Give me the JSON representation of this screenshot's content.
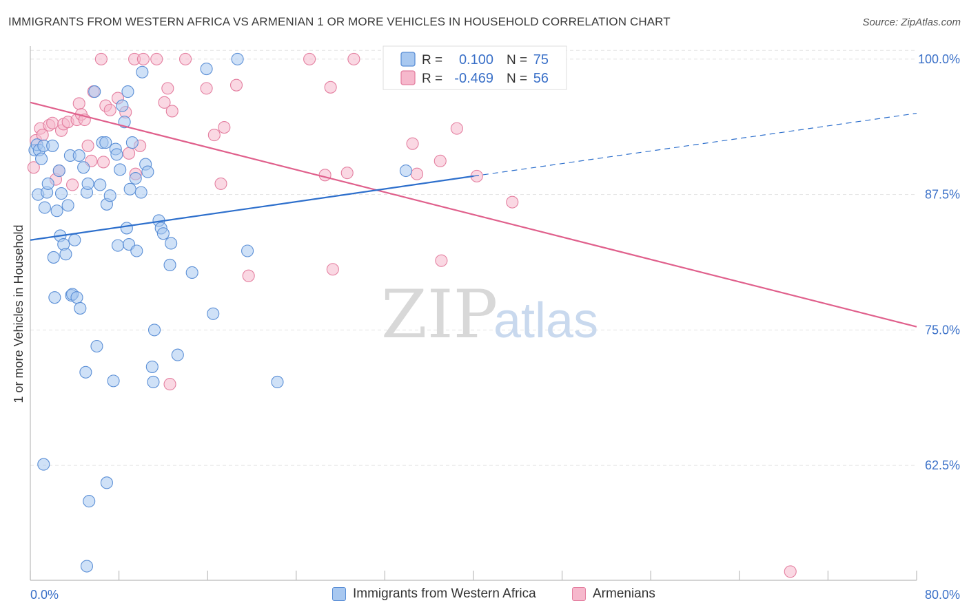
{
  "header": {
    "title": "IMMIGRANTS FROM WESTERN AFRICA VS ARMENIAN 1 OR MORE VEHICLES IN HOUSEHOLD CORRELATION CHART",
    "source": "Source: ZipAtlas.com"
  },
  "watermark": {
    "zip": "ZIP",
    "atlas": "atlas"
  },
  "stats": {
    "r_label": "R =",
    "n_label": "N =",
    "series1_r": "0.100",
    "series1_n": "75",
    "series2_r": "-0.469",
    "series2_n": "56"
  },
  "colors": {
    "series1_fill": "#a8c8f0",
    "series1_stroke": "#5b8fd6",
    "series1_line": "#2d6fcc",
    "series2_fill": "#f6b8cc",
    "series2_stroke": "#e47fa0",
    "series2_line": "#e0608c",
    "value_text": "#3a70c8",
    "grid": "#e2e2e2"
  },
  "chart_data": {
    "type": "scatter",
    "title": "IMMIGRANTS FROM WESTERN AFRICA VS ARMENIAN 1 OR MORE VEHICLES IN HOUSEHOLD CORRELATION CHART",
    "xlabel": "",
    "ylabel": "1 or more Vehicles in Household",
    "xlim": [
      0,
      80
    ],
    "ylim": [
      51.9,
      101.2
    ],
    "x_tick_labels": [
      "0.0%",
      "80.0%"
    ],
    "y_ticks": [
      62.5,
      75.0,
      87.5,
      100.0
    ],
    "y_tick_labels": [
      "62.5%",
      "75.0%",
      "87.5%",
      "100.0%"
    ],
    "grid": true,
    "legend_position": "bottom-center",
    "series": [
      {
        "name": "Immigrants from Western Africa",
        "r": 0.1,
        "n": 75,
        "trend": {
          "x0": 0.0,
          "y0": 83.3,
          "x1": 40.0,
          "y1": 89.2,
          "dashed_to_x": 80.0,
          "dashed_to_y": 95.0
        },
        "points": [
          [
            0.4,
            91.6
          ],
          [
            0.6,
            92.1
          ],
          [
            0.8,
            91.6
          ],
          [
            1.0,
            90.8
          ],
          [
            1.2,
            92.0
          ],
          [
            0.7,
            87.5
          ],
          [
            1.3,
            86.3
          ],
          [
            1.5,
            87.7
          ],
          [
            1.6,
            88.5
          ],
          [
            2.0,
            92.0
          ],
          [
            2.2,
            78.0
          ],
          [
            2.1,
            81.7
          ],
          [
            2.4,
            86.0
          ],
          [
            2.6,
            89.7
          ],
          [
            2.7,
            83.7
          ],
          [
            2.8,
            87.6
          ],
          [
            3.0,
            82.9
          ],
          [
            3.2,
            82.0
          ],
          [
            3.4,
            86.5
          ],
          [
            3.6,
            91.1
          ],
          [
            3.7,
            78.2
          ],
          [
            3.8,
            78.3
          ],
          [
            4.0,
            83.3
          ],
          [
            4.2,
            78.0
          ],
          [
            4.4,
            91.1
          ],
          [
            4.5,
            77.0
          ],
          [
            4.8,
            90.0
          ],
          [
            5.1,
            87.7
          ],
          [
            5.2,
            88.5
          ],
          [
            5.8,
            97.0
          ],
          [
            6.0,
            73.5
          ],
          [
            6.3,
            88.4
          ],
          [
            6.5,
            92.3
          ],
          [
            6.8,
            92.3
          ],
          [
            6.9,
            86.6
          ],
          [
            7.2,
            87.4
          ],
          [
            7.5,
            70.3
          ],
          [
            7.7,
            91.7
          ],
          [
            7.8,
            91.2
          ],
          [
            7.9,
            82.8
          ],
          [
            8.1,
            89.8
          ],
          [
            8.3,
            95.7
          ],
          [
            8.5,
            94.2
          ],
          [
            8.7,
            84.4
          ],
          [
            8.8,
            97.0
          ],
          [
            8.9,
            82.9
          ],
          [
            9.0,
            88.0
          ],
          [
            9.2,
            92.3
          ],
          [
            9.5,
            89.0
          ],
          [
            9.6,
            82.3
          ],
          [
            10.0,
            87.7
          ],
          [
            10.1,
            98.8
          ],
          [
            10.4,
            90.3
          ],
          [
            10.6,
            89.6
          ],
          [
            11.2,
            75.0
          ],
          [
            11.0,
            71.6
          ],
          [
            11.1,
            70.2
          ],
          [
            11.6,
            85.1
          ],
          [
            11.8,
            84.4
          ],
          [
            12.0,
            83.9
          ],
          [
            12.7,
            83.0
          ],
          [
            12.6,
            81.0
          ],
          [
            13.3,
            72.7
          ],
          [
            14.6,
            80.3
          ],
          [
            15.9,
            99.1
          ],
          [
            16.5,
            76.5
          ],
          [
            18.7,
            100.0
          ],
          [
            19.6,
            82.3
          ],
          [
            22.3,
            70.2
          ],
          [
            33.9,
            89.7
          ],
          [
            1.2,
            62.6
          ],
          [
            5.3,
            59.2
          ],
          [
            6.9,
            60.9
          ],
          [
            5.1,
            53.2
          ],
          [
            5.0,
            71.1
          ]
        ]
      },
      {
        "name": "Armenians",
        "r": -0.469,
        "n": 56,
        "trend": {
          "x0": 0.0,
          "y0": 96.0,
          "x1": 80.0,
          "y1": 75.3
        },
        "points": [
          [
            0.3,
            90.0
          ],
          [
            0.5,
            92.5
          ],
          [
            0.9,
            93.6
          ],
          [
            1.1,
            93.0
          ],
          [
            1.7,
            93.9
          ],
          [
            2.0,
            94.1
          ],
          [
            2.3,
            88.9
          ],
          [
            2.6,
            89.7
          ],
          [
            2.8,
            93.4
          ],
          [
            3.0,
            94.0
          ],
          [
            3.4,
            94.2
          ],
          [
            3.8,
            88.4
          ],
          [
            4.2,
            94.4
          ],
          [
            4.4,
            95.9
          ],
          [
            4.6,
            94.9
          ],
          [
            4.9,
            94.4
          ],
          [
            5.2,
            92.0
          ],
          [
            5.5,
            90.6
          ],
          [
            5.7,
            97.0
          ],
          [
            6.4,
            100.0
          ],
          [
            6.6,
            90.5
          ],
          [
            6.8,
            95.7
          ],
          [
            7.2,
            95.3
          ],
          [
            7.9,
            96.4
          ],
          [
            8.6,
            95.1
          ],
          [
            8.9,
            91.3
          ],
          [
            9.4,
            100.0
          ],
          [
            9.5,
            89.4
          ],
          [
            9.9,
            92.0
          ],
          [
            10.2,
            100.0
          ],
          [
            11.4,
            100.0
          ],
          [
            12.1,
            96.0
          ],
          [
            12.4,
            97.3
          ],
          [
            12.8,
            95.2
          ],
          [
            14.0,
            100.0
          ],
          [
            15.9,
            97.3
          ],
          [
            16.6,
            93.0
          ],
          [
            17.2,
            88.5
          ],
          [
            17.5,
            93.7
          ],
          [
            18.6,
            97.6
          ],
          [
            19.7,
            80.0
          ],
          [
            25.2,
            100.0
          ],
          [
            26.6,
            89.3
          ],
          [
            27.1,
            97.4
          ],
          [
            27.3,
            80.6
          ],
          [
            28.6,
            89.5
          ],
          [
            29.2,
            100.0
          ],
          [
            34.5,
            92.2
          ],
          [
            34.9,
            89.4
          ],
          [
            37.1,
            81.4
          ],
          [
            37.0,
            90.6
          ],
          [
            38.5,
            93.6
          ],
          [
            40.3,
            89.2
          ],
          [
            43.5,
            86.8
          ],
          [
            68.6,
            52.7
          ],
          [
            12.6,
            70.0
          ]
        ]
      }
    ]
  },
  "legend": {
    "series1_label": "Immigrants from Western Africa",
    "series2_label": "Armenians"
  }
}
